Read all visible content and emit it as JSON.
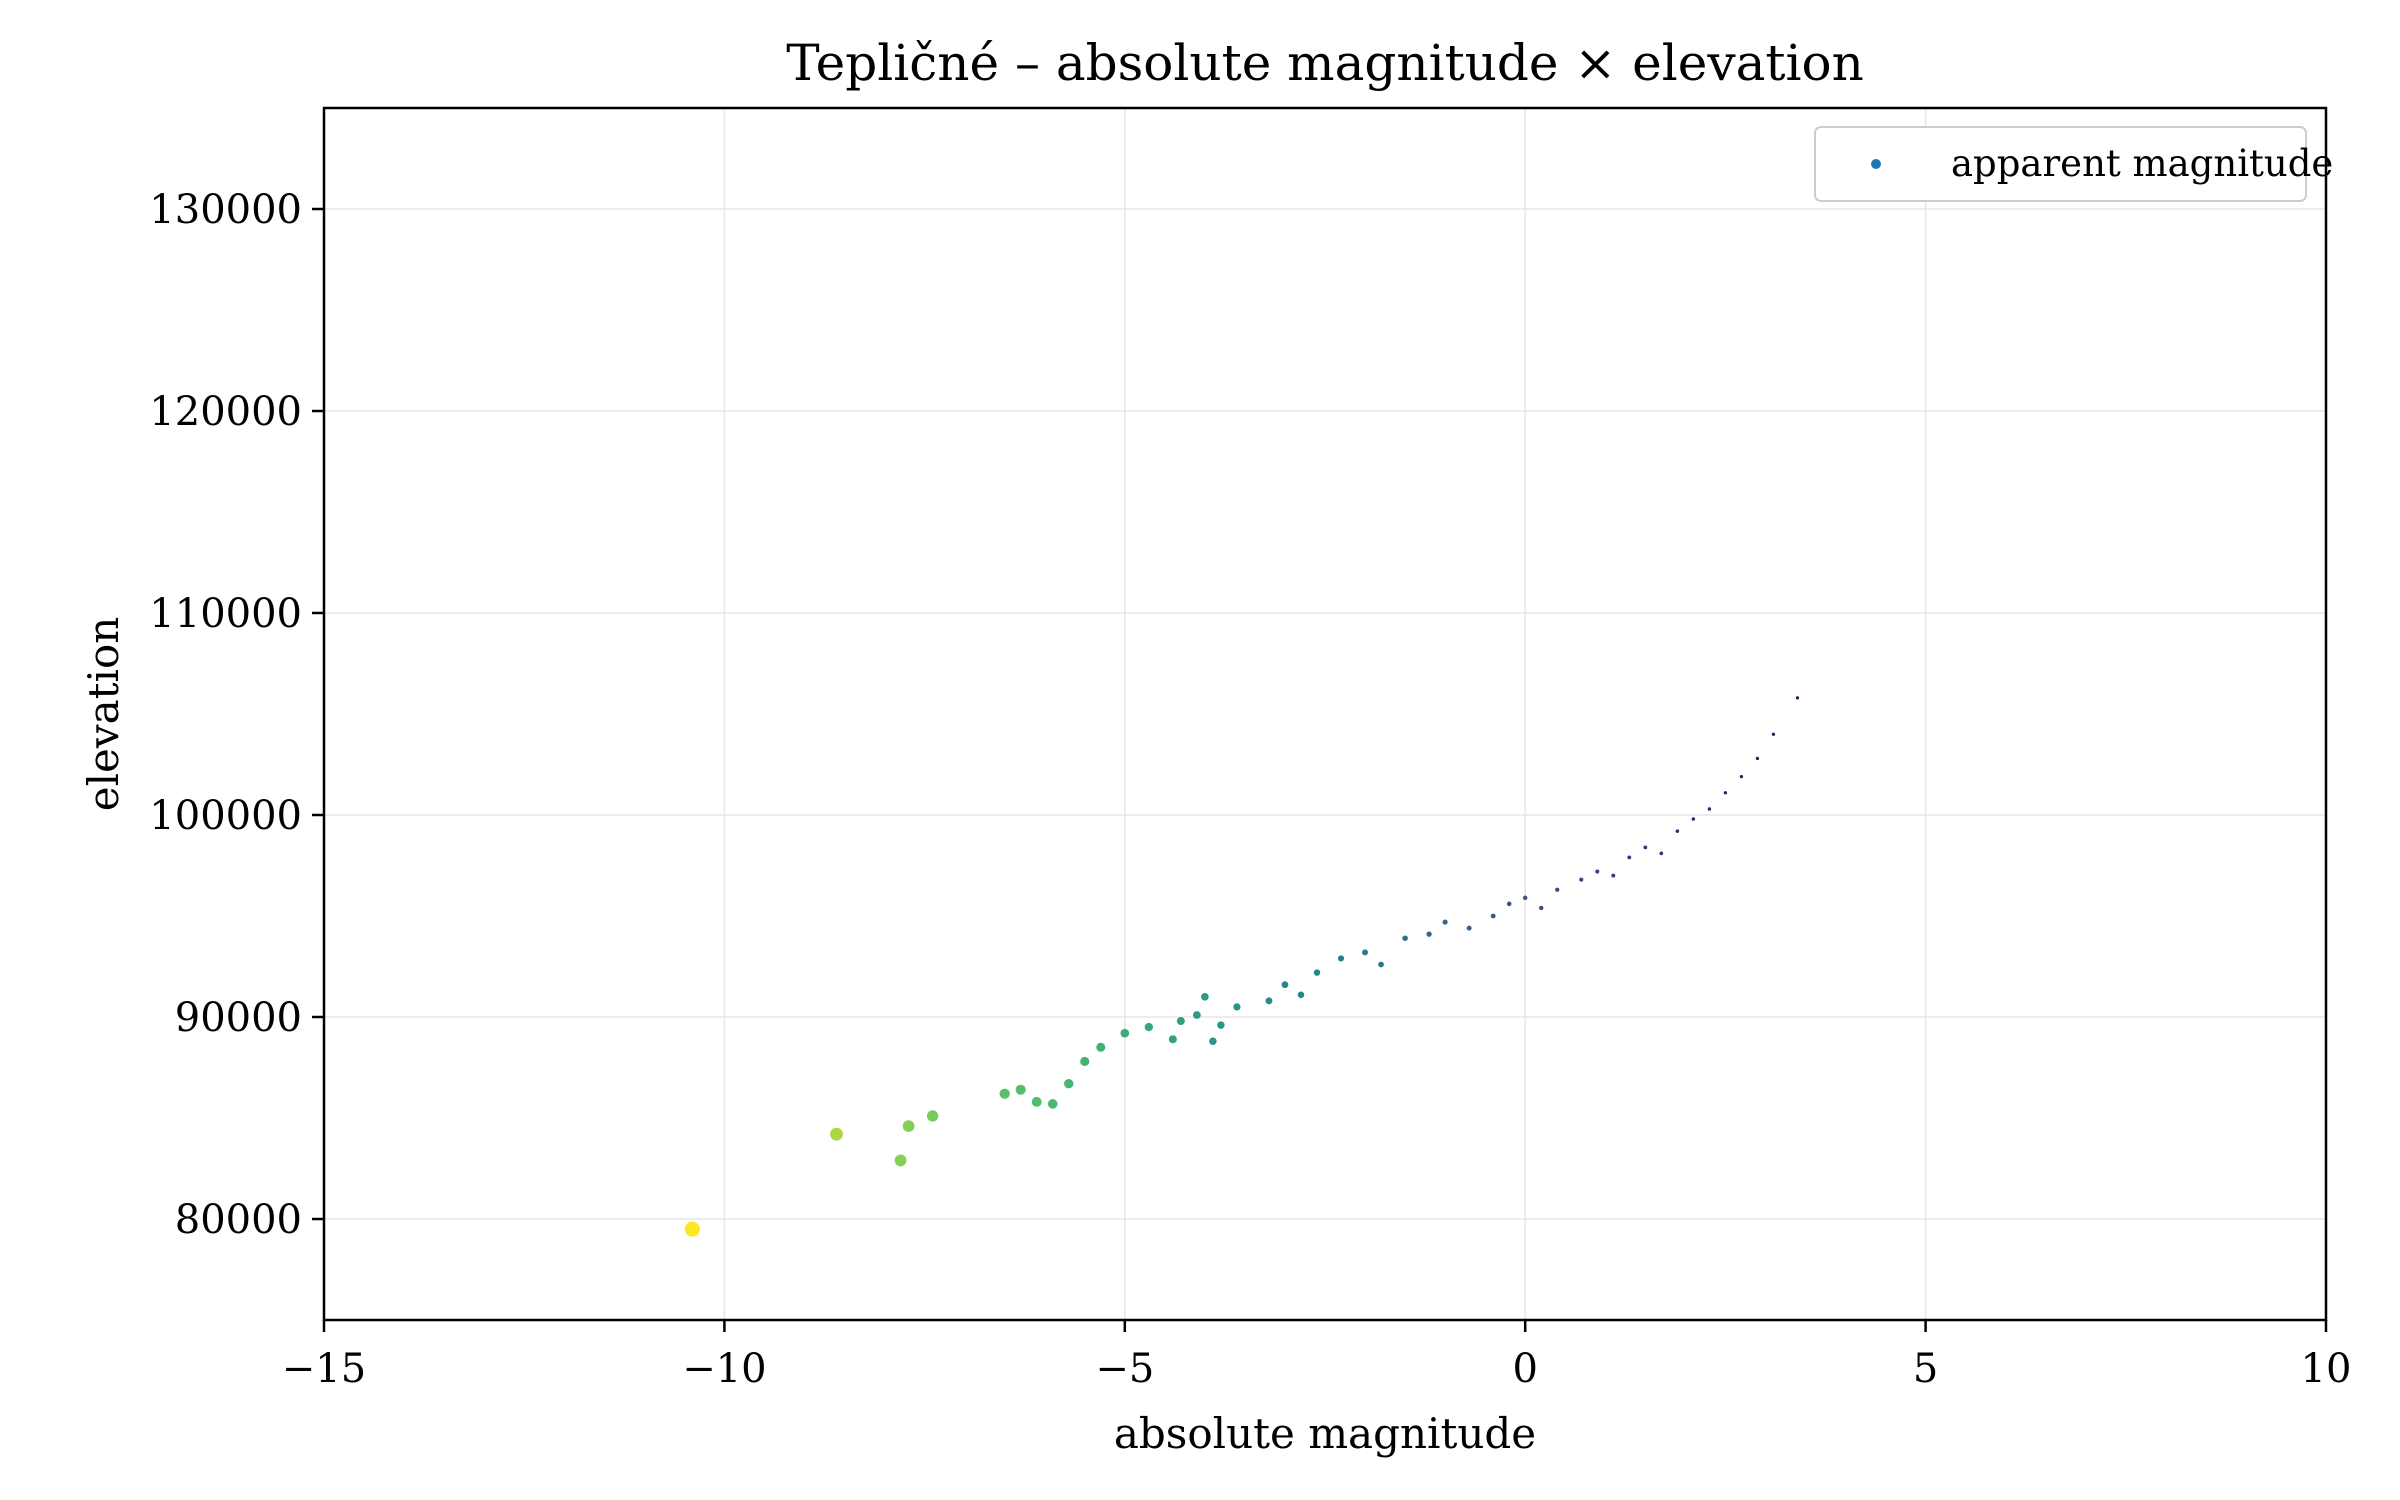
{
  "chart_data": {
    "type": "scatter",
    "title": "Tepličné – absolute magnitude × elevation",
    "xlabel": "absolute magnitude",
    "ylabel": "elevation",
    "xlim": [
      -15,
      10
    ],
    "ylim": [
      75000,
      135000
    ],
    "xticks": [
      -15,
      -10,
      -5,
      0,
      5,
      10
    ],
    "xtick_labels": [
      "−15",
      "−10",
      "−5",
      "0",
      "5",
      "10"
    ],
    "yticks": [
      80000,
      90000,
      100000,
      110000,
      120000,
      130000
    ],
    "ytick_labels": [
      "80000",
      "90000",
      "100000",
      "110000",
      "120000",
      "130000"
    ],
    "grid": true,
    "legend": {
      "position": "top-right",
      "entries": [
        {
          "label": "apparent magnitude",
          "color": "#1f77b4"
        }
      ]
    },
    "colormap": "viridis",
    "series": [
      {
        "name": "apparent magnitude",
        "points": [
          {
            "x": -10.4,
            "y": 79500
          },
          {
            "x": -8.6,
            "y": 84200
          },
          {
            "x": -7.8,
            "y": 82900
          },
          {
            "x": -7.7,
            "y": 84600
          },
          {
            "x": -7.4,
            "y": 85100
          },
          {
            "x": -6.5,
            "y": 86200
          },
          {
            "x": -6.3,
            "y": 86400
          },
          {
            "x": -6.1,
            "y": 85800
          },
          {
            "x": -5.9,
            "y": 85700
          },
          {
            "x": -5.7,
            "y": 86700
          },
          {
            "x": -5.5,
            "y": 87800
          },
          {
            "x": -5.3,
            "y": 88500
          },
          {
            "x": -5.0,
            "y": 89200
          },
          {
            "x": -4.7,
            "y": 89500
          },
          {
            "x": -4.4,
            "y": 88900
          },
          {
            "x": -4.3,
            "y": 89800
          },
          {
            "x": -4.1,
            "y": 90100
          },
          {
            "x": -4.0,
            "y": 91000
          },
          {
            "x": -3.9,
            "y": 88800
          },
          {
            "x": -3.8,
            "y": 89600
          },
          {
            "x": -3.6,
            "y": 90500
          },
          {
            "x": -3.2,
            "y": 90800
          },
          {
            "x": -3.0,
            "y": 91600
          },
          {
            "x": -2.8,
            "y": 91100
          },
          {
            "x": -2.6,
            "y": 92200
          },
          {
            "x": -2.3,
            "y": 92900
          },
          {
            "x": -2.0,
            "y": 93200
          },
          {
            "x": -1.8,
            "y": 92600
          },
          {
            "x": -1.5,
            "y": 93900
          },
          {
            "x": -1.2,
            "y": 94100
          },
          {
            "x": -1.0,
            "y": 94700
          },
          {
            "x": -0.7,
            "y": 94400
          },
          {
            "x": -0.4,
            "y": 95000
          },
          {
            "x": -0.2,
            "y": 95600
          },
          {
            "x": 0.0,
            "y": 95900
          },
          {
            "x": 0.2,
            "y": 95400
          },
          {
            "x": 0.4,
            "y": 96300
          },
          {
            "x": 0.7,
            "y": 96800
          },
          {
            "x": 0.9,
            "y": 97200
          },
          {
            "x": 1.1,
            "y": 97000
          },
          {
            "x": 1.3,
            "y": 97900
          },
          {
            "x": 1.5,
            "y": 98400
          },
          {
            "x": 1.7,
            "y": 98100
          },
          {
            "x": 1.9,
            "y": 99200
          },
          {
            "x": 2.1,
            "y": 99800
          },
          {
            "x": 2.3,
            "y": 100300
          },
          {
            "x": 2.5,
            "y": 101100
          },
          {
            "x": 2.7,
            "y": 101900
          },
          {
            "x": 2.9,
            "y": 102800
          },
          {
            "x": 3.1,
            "y": 104000
          },
          {
            "x": 3.4,
            "y": 105800
          }
        ]
      }
    ]
  }
}
